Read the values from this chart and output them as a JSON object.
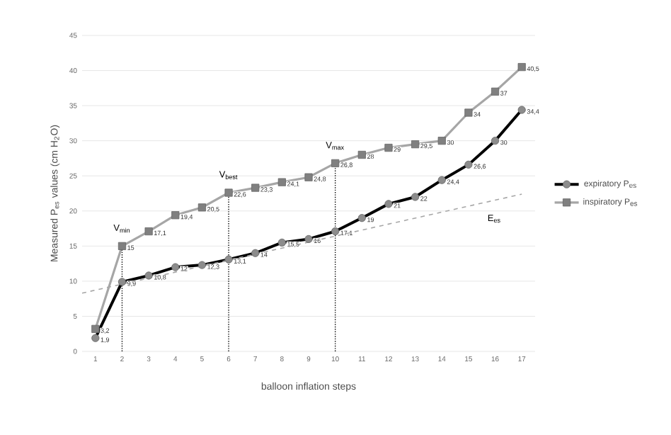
{
  "chart_data": {
    "type": "line",
    "xlabel": "balloon inflation steps",
    "ylabel": "Measured P$_{es}$ values (cm H$_{2}$O)",
    "x": [
      1,
      2,
      3,
      4,
      5,
      6,
      7,
      8,
      9,
      10,
      11,
      12,
      13,
      14,
      15,
      16,
      17
    ],
    "xlim": [
      0.5,
      17.5
    ],
    "xticks": [
      1,
      2,
      3,
      4,
      5,
      6,
      7,
      8,
      9,
      10,
      11,
      12,
      13,
      14,
      15,
      16,
      17
    ],
    "ylim": [
      0,
      45
    ],
    "yticks": [
      0,
      5,
      10,
      15,
      20,
      25,
      30,
      35,
      40,
      45
    ],
    "grid": "y",
    "legend": "right",
    "series": [
      {
        "name": "expiratory P$_{es}$",
        "color": "#000000",
        "marker": "circle",
        "values": [
          1.9,
          9.9,
          10.8,
          12,
          12.3,
          13.1,
          14,
          15.5,
          16,
          17.1,
          19,
          21,
          22,
          24.4,
          26.6,
          30,
          34.4
        ],
        "value_labels": [
          "1,9",
          "9,9",
          "10,8",
          "12",
          "12,3",
          "13,1",
          "14",
          "15,5",
          "16",
          "17,1",
          "19",
          "21",
          "22",
          "24,4",
          "26,6",
          "30",
          "34,4"
        ]
      },
      {
        "name": "inspiratory P$_{es}$",
        "color": "#a6a6a6",
        "marker": "square",
        "values": [
          3.2,
          15,
          17.1,
          19.4,
          20.5,
          22.6,
          23.3,
          24.1,
          24.8,
          26.8,
          28,
          29,
          29.5,
          30,
          34,
          37,
          40.5
        ],
        "value_labels": [
          "3,2",
          "15",
          "17,1",
          "19,4",
          "20,5",
          "22,6",
          "23,3",
          "24,1",
          "24,8",
          "26,8",
          "28",
          "29",
          "29,5",
          "30",
          "34",
          "37",
          "40,5"
        ]
      },
      {
        "type": "line",
        "color": "#a6a6a6",
        "line_style": "dashed",
        "marker": "none",
        "x": [
          0.5,
          17
        ],
        "values": [
          8.3,
          22.4
        ]
      }
    ],
    "ref_lines": [
      {
        "axis": "x",
        "value": 2,
        "label": "V$_{min}$"
      },
      {
        "axis": "x",
        "value": 6,
        "label": "V$_{best}$"
      },
      {
        "axis": "x",
        "value": 10,
        "label": "V$_{max}$"
      }
    ],
    "annotations": [
      "E$_{es}$"
    ]
  }
}
